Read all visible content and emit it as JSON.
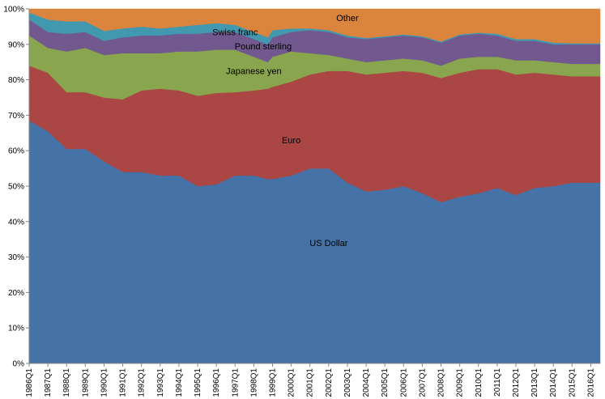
{
  "chart_data": {
    "type": "area",
    "stacked": "percent",
    "title": "",
    "xlabel": "",
    "ylabel": "",
    "ylim": [
      0,
      100
    ],
    "y_ticks": [
      "0%",
      "10%",
      "20%",
      "30%",
      "40%",
      "50%",
      "60%",
      "70%",
      "80%",
      "90%",
      "100%"
    ],
    "grid": false,
    "legend": "none (series labelled inside areas)",
    "x_tick_labels": [
      "1986Q1",
      "1987Q1",
      "1988Q1",
      "1989Q1",
      "1990Q1",
      "1991Q1",
      "1992Q1",
      "1993Q1",
      "1994Q1",
      "1995Q1",
      "1996Q1",
      "1997Q1",
      "1998Q1",
      "1999Q1",
      "2000Q1",
      "2001Q1",
      "2002Q1",
      "2003Q1",
      "2004Q1",
      "2005Q1",
      "2006Q1",
      "2007Q1",
      "2008Q1",
      "2009Q1",
      "2010Q1",
      "2011Q1",
      "2012Q1",
      "2013Q1",
      "2014Q1",
      "2015Q1",
      "2016Q1"
    ],
    "x": [
      1986.0,
      1987.0,
      1988.0,
      1989.0,
      1990.0,
      1991.0,
      1992.0,
      1993.0,
      1994.0,
      1995.0,
      1996.0,
      1997.0,
      1998.0,
      1998.75,
      1999.0,
      2000.0,
      2001.0,
      2002.0,
      2003.0,
      2004.0,
      2005.0,
      2006.0,
      2007.0,
      2008.0,
      2009.0,
      2010.0,
      2011.0,
      2012.0,
      2013.0,
      2014.0,
      2015.0,
      2016.0,
      2016.5
    ],
    "series": [
      {
        "name": "US Dollar",
        "color": "#4572A7",
        "values": [
          68.5,
          65.5,
          60.5,
          60.5,
          57.0,
          54.0,
          54.0,
          53.0,
          53.0,
          50.0,
          50.5,
          53.0,
          53.0,
          52.0,
          52.0,
          53.0,
          55.0,
          55.0,
          51.0,
          48.5,
          49.0,
          50.0,
          48.0,
          45.5,
          47.0,
          48.0,
          49.5,
          47.5,
          49.5,
          50.0,
          51.0,
          51.0,
          51.0
        ]
      },
      {
        "name": "Euro",
        "color": "#AA4643",
        "values": [
          15.5,
          16.5,
          16.0,
          16.0,
          18.0,
          20.5,
          23.0,
          24.5,
          24.0,
          25.5,
          25.8,
          23.5,
          24.0,
          25.5,
          26.0,
          26.5,
          26.5,
          27.5,
          31.5,
          33.0,
          33.0,
          32.5,
          34.0,
          35.0,
          35.0,
          35.0,
          33.5,
          34.0,
          32.5,
          31.5,
          30.0,
          30.0,
          30.0
        ]
      },
      {
        "name": "Japanese yen",
        "color": "#89A54E",
        "values": [
          8.5,
          7.0,
          11.5,
          12.5,
          12.0,
          13.0,
          10.5,
          10.0,
          11.0,
          12.5,
          12.2,
          12.0,
          9.5,
          7.5,
          8.5,
          8.5,
          6.0,
          4.5,
          3.5,
          3.5,
          3.5,
          3.5,
          3.5,
          3.5,
          4.0,
          3.5,
          3.5,
          4.0,
          3.5,
          3.5,
          3.5,
          3.5,
          3.5
        ]
      },
      {
        "name": "Pound sterling",
        "color": "#71588F",
        "values": [
          4.5,
          4.5,
          5.0,
          4.5,
          4.0,
          4.5,
          5.0,
          5.0,
          5.0,
          5.0,
          5.0,
          5.0,
          5.0,
          5.0,
          5.5,
          5.5,
          6.5,
          6.5,
          6.0,
          6.5,
          6.5,
          6.5,
          6.5,
          6.5,
          6.5,
          6.5,
          6.0,
          5.5,
          5.5,
          5.0,
          5.5,
          5.5,
          5.5
        ]
      },
      {
        "name": "Swiss franc",
        "color": "#4198AF",
        "values": [
          2.0,
          3.5,
          3.5,
          3.0,
          2.8,
          2.5,
          2.5,
          2.0,
          2.0,
          2.5,
          2.5,
          2.0,
          2.0,
          2.0,
          2.0,
          1.0,
          0.5,
          0.5,
          0.5,
          0.3,
          0.3,
          0.3,
          0.3,
          0.3,
          0.3,
          0.3,
          0.5,
          0.5,
          0.5,
          0.5,
          0.3,
          0.3,
          0.3
        ]
      },
      {
        "name": "Other",
        "color": "#DB843D",
        "values": [
          1.0,
          3.0,
          3.5,
          3.5,
          6.2,
          5.5,
          5.0,
          5.5,
          5.0,
          4.5,
          4.0,
          4.5,
          6.5,
          8.0,
          6.0,
          5.5,
          5.5,
          6.0,
          7.5,
          8.2,
          7.7,
          7.2,
          7.7,
          9.2,
          7.2,
          6.7,
          7.0,
          8.5,
          8.5,
          9.5,
          9.7,
          9.7,
          9.7
        ]
      }
    ],
    "annotations": [
      {
        "text": "Other",
        "x": 2003.0,
        "y": 97.5
      },
      {
        "text": "Swiss franc",
        "x": 1997.0,
        "y": 93.5
      },
      {
        "text": "Pound sterling",
        "x": 1998.5,
        "y": 89.5
      },
      {
        "text": "Japanese yen",
        "x": 1998.0,
        "y": 82.5
      },
      {
        "text": "Euro",
        "x": 2000.0,
        "y": 63.0
      },
      {
        "text": "US Dollar",
        "x": 2002.0,
        "y": 34.0
      }
    ]
  }
}
